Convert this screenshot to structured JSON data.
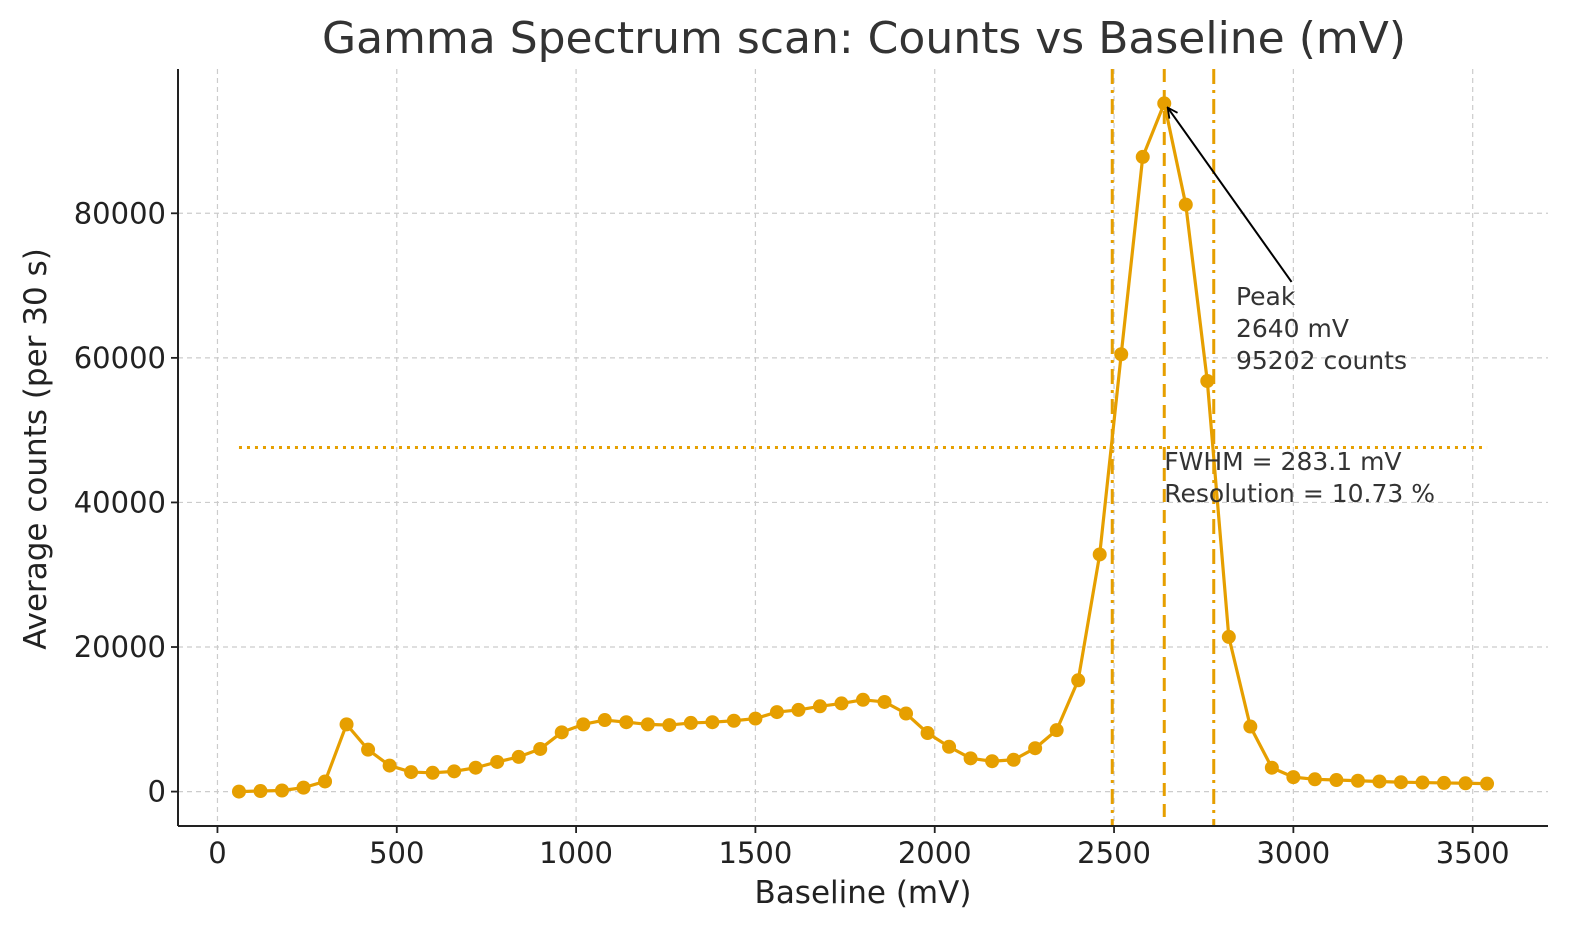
{
  "chart_data": {
    "type": "line",
    "title": "Gamma Spectrum scan: Counts vs Baseline (mV)",
    "xlabel": "Baseline (mV)",
    "ylabel": "Average counts (per 30 s)",
    "xlim": [
      -110,
      3710
    ],
    "ylim": [
      -4760,
      99960
    ],
    "xticks": [
      0,
      500,
      1000,
      1500,
      2000,
      2500,
      3000,
      3500
    ],
    "yticks": [
      0,
      20000,
      40000,
      60000,
      80000
    ],
    "grid": true,
    "grid_style": "dashed",
    "series": [
      {
        "color": "#E69F00",
        "marker": "circle",
        "x": [
          60,
          120,
          180,
          240,
          300,
          360,
          420,
          480,
          540,
          600,
          660,
          720,
          780,
          840,
          900,
          960,
          1020,
          1080,
          1140,
          1200,
          1260,
          1320,
          1380,
          1440,
          1500,
          1560,
          1620,
          1680,
          1740,
          1800,
          1860,
          1920,
          1980,
          2040,
          2100,
          2160,
          2220,
          2280,
          2340,
          2400,
          2460,
          2520,
          2580,
          2640,
          2700,
          2760,
          2820,
          2880,
          2940,
          3000,
          3060,
          3120,
          3180,
          3240,
          3300,
          3360,
          3420,
          3480,
          3540
        ],
        "y": [
          0,
          80,
          150,
          550,
          1400,
          9300,
          5800,
          3600,
          2700,
          2600,
          2800,
          3300,
          4100,
          4800,
          5900,
          8200,
          9300,
          9900,
          9600,
          9300,
          9200,
          9500,
          9600,
          9800,
          10100,
          11000,
          11300,
          11800,
          12200,
          12700,
          12400,
          10800,
          8100,
          6200,
          4600,
          4200,
          4400,
          6000,
          8500,
          15400,
          32800,
          60500,
          87800,
          95202,
          81200,
          56800,
          21400,
          9000,
          3300,
          2000,
          1700,
          1600,
          1500,
          1400,
          1300,
          1250,
          1200,
          1150,
          1100
        ]
      }
    ],
    "reference_lines": {
      "peak_x": 2640,
      "fwhm_left_x": 2495,
      "fwhm_right_x": 2778,
      "half_max_y": 47601,
      "half_max_x_range": [
        60,
        3540
      ]
    },
    "annotations": {
      "peak_label": [
        "Peak",
        "2640 mV",
        "95202 counts"
      ],
      "peak_label_anchor": {
        "x": 2840,
        "y": 67300
      },
      "peak_arrow_tail": {
        "x": 2995,
        "y": 70500
      },
      "peak_point": {
        "x": 2640,
        "y": 95202
      },
      "fwhm_label": [
        "FWHM = 283.1 mV",
        "Resolution = 10.73 %"
      ],
      "fwhm_label_anchor": {
        "x": 2640,
        "y": 44500
      }
    }
  }
}
